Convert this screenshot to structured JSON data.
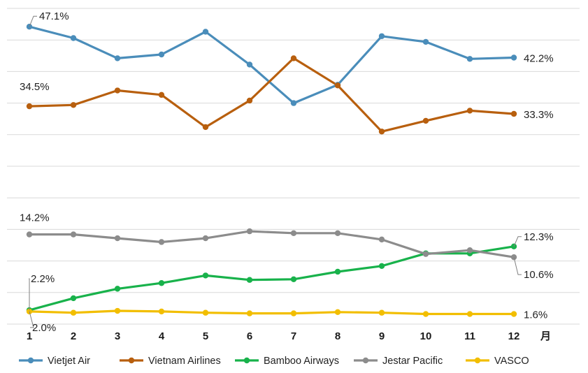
{
  "chart_data": {
    "type": "line",
    "title": "",
    "xlabel": "月",
    "ylabel": "",
    "x": [
      1,
      2,
      3,
      4,
      5,
      6,
      7,
      8,
      9,
      10,
      11,
      12
    ],
    "x_tick_labels": [
      "1",
      "2",
      "3",
      "4",
      "5",
      "6",
      "7",
      "8",
      "9",
      "10",
      "11",
      "12"
    ],
    "ylim": [
      0,
      50
    ],
    "grid": true,
    "legend": "bottom",
    "series": [
      {
        "name": "Vietjet Air",
        "color": "#4A8DBA",
        "values": [
          47.1,
          45.3,
          42.1,
          42.7,
          46.3,
          41.1,
          35.0,
          37.9,
          45.6,
          44.7,
          42.0,
          42.2
        ]
      },
      {
        "name": "Vietnam Airlines",
        "color": "#B85F0E",
        "values": [
          34.5,
          34.7,
          37.0,
          36.3,
          31.2,
          35.4,
          42.1,
          37.8,
          30.5,
          32.2,
          33.8,
          33.3
        ]
      },
      {
        "name": "Bamboo Airways",
        "color": "#18B24B",
        "values": [
          2.2,
          4.1,
          5.6,
          6.5,
          7.7,
          7.0,
          7.1,
          8.3,
          9.2,
          11.2,
          11.2,
          12.3
        ]
      },
      {
        "name": "Jestar Pacific",
        "color": "#8C8C8C",
        "values": [
          14.2,
          14.2,
          13.6,
          13.0,
          13.6,
          14.7,
          14.4,
          14.4,
          13.4,
          11.1,
          11.7,
          10.6
        ]
      },
      {
        "name": "VASCO",
        "color": "#F2BE00",
        "values": [
          2.0,
          1.8,
          2.1,
          2.0,
          1.8,
          1.7,
          1.7,
          1.9,
          1.8,
          1.6,
          1.6,
          1.6
        ]
      }
    ],
    "annotations": [
      {
        "series": "Vietjet Air",
        "x": 1,
        "text": "47.1%"
      },
      {
        "series": "Vietjet Air",
        "x": 12,
        "text": "42.2%"
      },
      {
        "series": "Vietnam Airlines",
        "x": 1,
        "text": "34.5%"
      },
      {
        "series": "Vietnam Airlines",
        "x": 12,
        "text": "33.3%"
      },
      {
        "series": "Jestar Pacific",
        "x": 1,
        "text": "14.2%"
      },
      {
        "series": "Jestar Pacific",
        "x": 12,
        "text": "10.6%"
      },
      {
        "series": "Bamboo Airways",
        "x": 1,
        "text": "2.2%"
      },
      {
        "series": "Bamboo Airways",
        "x": 12,
        "text": "12.3%"
      },
      {
        "series": "VASCO",
        "x": 1,
        "text": "2.0%"
      },
      {
        "series": "VASCO",
        "x": 12,
        "text": "1.6%"
      }
    ]
  }
}
